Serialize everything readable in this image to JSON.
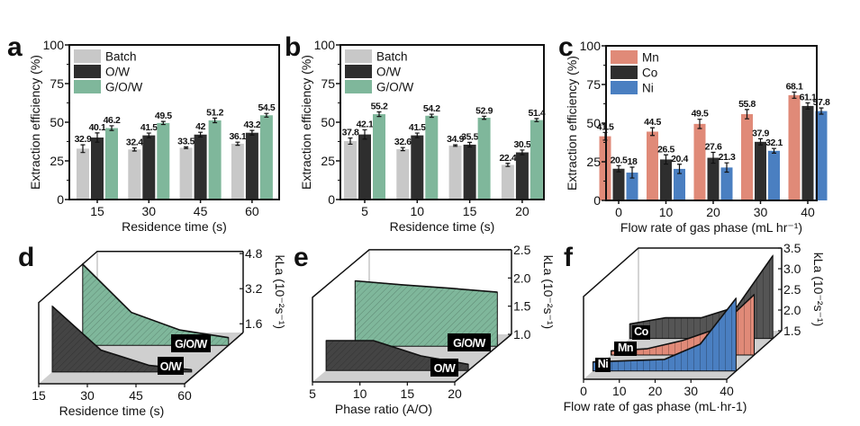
{
  "chart_data": [
    {
      "panel": "a",
      "type": "bar",
      "categories": [
        "15",
        "30",
        "45",
        "60"
      ],
      "xlabel": "Residence time (s)",
      "ylabel": "Extraction efficiency (%)",
      "ylim": [
        0,
        100
      ],
      "yticks": [
        "0",
        "25",
        "50",
        "75",
        "100"
      ],
      "legend": "top-left",
      "series": [
        {
          "name": "Batch",
          "color": "#c8c8c8",
          "values": [
            32.9,
            32.4,
            33.5,
            36.1
          ],
          "errors": [
            2.5,
            1,
            0.5,
            1
          ]
        },
        {
          "name": "O/W",
          "color": "#2e2e2e",
          "values": [
            40.1,
            41.5,
            42,
            43.2
          ],
          "errors": [
            3,
            1.5,
            1.5,
            1.5
          ]
        },
        {
          "name": "G/O/W",
          "color": "#7fb79b",
          "values": [
            46.2,
            49.5,
            51.2,
            54.5
          ],
          "errors": [
            1.5,
            1,
            1.5,
            1.2
          ]
        }
      ]
    },
    {
      "panel": "b",
      "type": "bar",
      "categories": [
        "5",
        "10",
        "15",
        "20"
      ],
      "xlabel": "Residence time (s)",
      "ylabel": "Extraction efficiency (%)",
      "ylim": [
        0,
        100
      ],
      "yticks": [
        "0",
        "25",
        "50",
        "75",
        "100"
      ],
      "legend": "top-left",
      "series": [
        {
          "name": "Batch",
          "color": "#c8c8c8",
          "values": [
            37.8,
            32.6,
            34.9,
            22.4
          ],
          "errors": [
            2,
            1,
            0.5,
            1
          ]
        },
        {
          "name": "O/W",
          "color": "#2e2e2e",
          "values": [
            42.1,
            41.5,
            35.5,
            30.5
          ],
          "errors": [
            3,
            1.5,
            1.5,
            1.5
          ]
        },
        {
          "name": "G/O/W",
          "color": "#7fb79b",
          "values": [
            55.2,
            54.2,
            52.9,
            51.4
          ],
          "errors": [
            1.5,
            1,
            1,
            1
          ]
        }
      ]
    },
    {
      "panel": "c",
      "type": "bar",
      "categories": [
        "0",
        "10",
        "20",
        "30",
        "40"
      ],
      "xlabel": "Flow rate of gas phase (mL hr⁻¹)",
      "ylabel": "Extraction efficiency (%)",
      "ylim": [
        0,
        100
      ],
      "yticks": [
        "0",
        "25",
        "50",
        "75",
        "100"
      ],
      "legend": "top-left",
      "series": [
        {
          "name": "Mn",
          "color": "#e08a78",
          "values": [
            41.5,
            44.5,
            49.5,
            55.8,
            68.1
          ],
          "errors": [
            2.5,
            2.5,
            3,
            3,
            2
          ]
        },
        {
          "name": "Co",
          "color": "#2e2e2e",
          "values": [
            20.5,
            26.5,
            27.6,
            37.9,
            61.1
          ],
          "errors": [
            2,
            3,
            3.5,
            2,
            2
          ]
        },
        {
          "name": "Ni",
          "color": "#4a7fc1",
          "values": [
            18,
            20.4,
            21.3,
            32.1,
            57.8
          ],
          "errors": [
            3.5,
            3,
            3,
            1.5,
            2
          ]
        }
      ]
    },
    {
      "panel": "d",
      "type": "area",
      "xlabel": "Residence time (s)",
      "zlabel": "kLa (10⁻²s⁻¹)",
      "xticks": [
        "15",
        "30",
        "45",
        "60"
      ],
      "xlim": [
        15,
        60
      ],
      "zticks": [
        "1.6",
        "3.2",
        "4.8"
      ],
      "zlim": [
        1.2,
        4.9
      ],
      "series": [
        {
          "name": "O/W",
          "color": "#444444",
          "x": [
            15,
            30,
            45,
            58
          ],
          "values": [
            4.2,
            2.2,
            1.5,
            1.3
          ]
        },
        {
          "name": "G/O/W",
          "color": "#7fb79b",
          "x": [
            15,
            30,
            45,
            60
          ],
          "values": [
            4.9,
            2.7,
            1.9,
            1.55
          ]
        }
      ]
    },
    {
      "panel": "e",
      "type": "area",
      "xlabel": "Phase ratio (A/O)",
      "zlabel": "kLa (10⁻²s⁻¹)",
      "xticks": [
        "5",
        "10",
        "15",
        "20"
      ],
      "xlim": [
        5,
        20
      ],
      "zticks": [
        "1.0",
        "1.5",
        "2.0",
        "2.5"
      ],
      "zlim": [
        1.0,
        2.5
      ],
      "series": [
        {
          "name": "O/W",
          "color": "#444444",
          "x": [
            5,
            10,
            15,
            20
          ],
          "values": [
            1.53,
            1.53,
            1.26,
            1.11
          ]
        },
        {
          "name": "G/O/W",
          "color": "#7fb79b",
          "x": [
            5,
            10,
            15,
            20
          ],
          "values": [
            2.16,
            2.09,
            2.03,
            1.96
          ]
        }
      ]
    },
    {
      "panel": "f",
      "type": "area",
      "xlabel": "Flow rate of gas phase (mL·hr-1)",
      "zlabel": "kLa (10⁻²s⁻¹)",
      "xticks": [
        "0",
        "10",
        "20",
        "30",
        "40"
      ],
      "xlim": [
        0,
        40
      ],
      "zticks": [
        "1.5",
        "2.0",
        "2.5",
        "3.0",
        "3.5"
      ],
      "zlim": [
        1.5,
        3.5
      ],
      "series": [
        {
          "name": "Ni",
          "color": "#4a7fc1",
          "x": [
            0,
            10,
            20,
            30,
            40
          ],
          "values": [
            1.72,
            1.75,
            1.78,
            2.15,
            3.26
          ]
        },
        {
          "name": "Mn",
          "color": "#e08a78",
          "x": [
            0,
            10,
            20,
            30,
            40
          ],
          "values": [
            1.6,
            1.65,
            1.85,
            2.15,
            2.96
          ]
        },
        {
          "name": "Co",
          "color": "#555555",
          "x": [
            0,
            10,
            20,
            30,
            40
          ],
          "values": [
            1.85,
            2.0,
            2.0,
            2.27,
            3.5
          ]
        }
      ]
    }
  ]
}
